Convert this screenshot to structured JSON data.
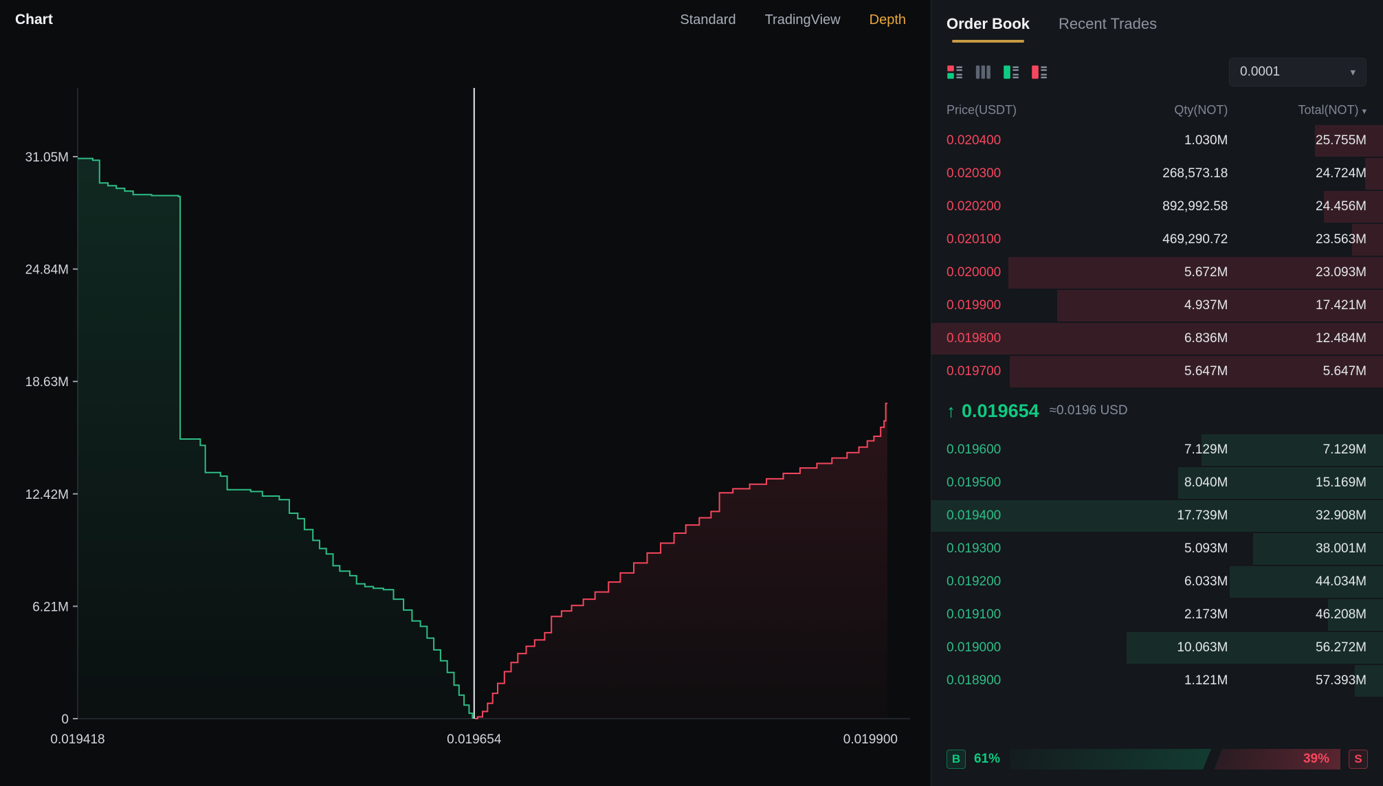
{
  "icons": {
    "chevron_down": "▾"
  },
  "chart_panel": {
    "title": "Chart",
    "tabs": [
      "Standard",
      "TradingView",
      "Depth"
    ],
    "active_tab": "Depth",
    "accent": "#e9a83d"
  },
  "chart_data": {
    "type": "area",
    "title": "Market depth",
    "x_min": 0.019418,
    "x_max": 0.0199,
    "mid_price": 0.019654,
    "y_ticks": [
      {
        "value": 0,
        "label": "0"
      },
      {
        "value": 6.21,
        "label": "6.21M"
      },
      {
        "value": 12.42,
        "label": "12.42M"
      },
      {
        "value": 18.63,
        "label": "18.63M"
      },
      {
        "value": 24.84,
        "label": "24.84M"
      },
      {
        "value": 31.05,
        "label": "31.05M"
      }
    ],
    "x_labels": [
      {
        "price": 0.019418,
        "label": "0.019418",
        "anchor": "middle"
      },
      {
        "price": 0.019654,
        "label": "0.019654",
        "anchor": "middle"
      },
      {
        "price": 0.0199,
        "label": "0.019900",
        "anchor": "end"
      }
    ],
    "series": [
      {
        "name": "bids",
        "color": "#2ebd85",
        "fill_top": "rgba(46,189,133,0.16)",
        "fill_bottom": "rgba(46,189,133,0.02)",
        "points": [
          [
            0.019418,
            30.95
          ],
          [
            0.019427,
            30.85
          ],
          [
            0.019431,
            29.6
          ],
          [
            0.019436,
            29.45
          ],
          [
            0.019441,
            29.3
          ],
          [
            0.019446,
            29.15
          ],
          [
            0.019451,
            28.95
          ],
          [
            0.019462,
            28.9
          ],
          [
            0.019478,
            28.85
          ],
          [
            0.019479,
            15.45
          ],
          [
            0.019491,
            15.1
          ],
          [
            0.019494,
            13.6
          ],
          [
            0.019503,
            13.4
          ],
          [
            0.019507,
            12.65
          ],
          [
            0.019521,
            12.55
          ],
          [
            0.019528,
            12.3
          ],
          [
            0.019538,
            12.1
          ],
          [
            0.019544,
            11.35
          ],
          [
            0.019549,
            11.05
          ],
          [
            0.019553,
            10.45
          ],
          [
            0.019558,
            9.85
          ],
          [
            0.019562,
            9.4
          ],
          [
            0.019566,
            9.1
          ],
          [
            0.01957,
            8.45
          ],
          [
            0.019574,
            8.15
          ],
          [
            0.01958,
            7.9
          ],
          [
            0.019584,
            7.45
          ],
          [
            0.019589,
            7.3
          ],
          [
            0.019594,
            7.2
          ],
          [
            0.0196,
            7.13
          ],
          [
            0.019606,
            6.6
          ],
          [
            0.019612,
            6.0
          ],
          [
            0.019617,
            5.4
          ],
          [
            0.019622,
            5.1
          ],
          [
            0.019626,
            4.45
          ],
          [
            0.01963,
            3.8
          ],
          [
            0.019634,
            3.2
          ],
          [
            0.019638,
            2.55
          ],
          [
            0.019642,
            1.85
          ],
          [
            0.019645,
            1.3
          ],
          [
            0.019648,
            0.75
          ],
          [
            0.019651,
            0.3
          ],
          [
            0.019653,
            0.05
          ],
          [
            0.0196535,
            0.0
          ]
        ]
      },
      {
        "name": "asks",
        "color": "#f6465d",
        "fill_top": "rgba(246,70,93,0.14)",
        "fill_bottom": "rgba(246,70,93,0.02)",
        "points": [
          [
            0.0196545,
            0.0
          ],
          [
            0.019656,
            0.1
          ],
          [
            0.019659,
            0.4
          ],
          [
            0.019662,
            0.85
          ],
          [
            0.019665,
            1.4
          ],
          [
            0.019668,
            1.95
          ],
          [
            0.019672,
            2.6
          ],
          [
            0.019676,
            3.1
          ],
          [
            0.01968,
            3.6
          ],
          [
            0.019685,
            4.0
          ],
          [
            0.01969,
            4.35
          ],
          [
            0.019696,
            4.75
          ],
          [
            0.0197,
            5.65
          ],
          [
            0.019706,
            5.95
          ],
          [
            0.019712,
            6.25
          ],
          [
            0.019719,
            6.6
          ],
          [
            0.019726,
            7.0
          ],
          [
            0.019734,
            7.55
          ],
          [
            0.019741,
            8.05
          ],
          [
            0.019749,
            8.6
          ],
          [
            0.019757,
            9.15
          ],
          [
            0.019765,
            9.7
          ],
          [
            0.019773,
            10.25
          ],
          [
            0.01978,
            10.7
          ],
          [
            0.019788,
            11.1
          ],
          [
            0.019795,
            11.45
          ],
          [
            0.0198,
            12.48
          ],
          [
            0.019808,
            12.7
          ],
          [
            0.019818,
            12.95
          ],
          [
            0.019828,
            13.25
          ],
          [
            0.019838,
            13.55
          ],
          [
            0.019848,
            13.85
          ],
          [
            0.019858,
            14.1
          ],
          [
            0.019867,
            14.4
          ],
          [
            0.019876,
            14.7
          ],
          [
            0.019883,
            15.0
          ],
          [
            0.019888,
            15.35
          ],
          [
            0.019892,
            15.6
          ],
          [
            0.019896,
            16.1
          ],
          [
            0.019898,
            16.45
          ],
          [
            0.019899,
            17.42
          ],
          [
            0.0199,
            17.42
          ]
        ]
      }
    ]
  },
  "order_book": {
    "tabs": [
      "Order Book",
      "Recent Trades"
    ],
    "active_tab": "Order Book",
    "tick_size": "0.0001",
    "columns": [
      "Price(USDT)",
      "Qty(NOT)",
      "Total(NOT)"
    ],
    "asks": [
      {
        "price": "0.020400",
        "qty": "1.030M",
        "total": "25.755M",
        "qty_m": 1.03
      },
      {
        "price": "0.020300",
        "qty": "268,573.18",
        "total": "24.724M",
        "qty_m": 0.269
      },
      {
        "price": "0.020200",
        "qty": "892,992.58",
        "total": "24.456M",
        "qty_m": 0.893
      },
      {
        "price": "0.020100",
        "qty": "469,290.72",
        "total": "23.563M",
        "qty_m": 0.469
      },
      {
        "price": "0.020000",
        "qty": "5.672M",
        "total": "23.093M",
        "qty_m": 5.672
      },
      {
        "price": "0.019900",
        "qty": "4.937M",
        "total": "17.421M",
        "qty_m": 4.937
      },
      {
        "price": "0.019800",
        "qty": "6.836M",
        "total": "12.484M",
        "qty_m": 6.836
      },
      {
        "price": "0.019700",
        "qty": "5.647M",
        "total": "5.647M",
        "qty_m": 5.647
      }
    ],
    "last_price": {
      "arrow": "↑",
      "value": "0.019654",
      "approx": "≈0.0196 USD",
      "direction": "up"
    },
    "bids": [
      {
        "price": "0.019600",
        "qty": "7.129M",
        "total": "7.129M",
        "qty_m": 7.129
      },
      {
        "price": "0.019500",
        "qty": "8.040M",
        "total": "15.169M",
        "qty_m": 8.04
      },
      {
        "price": "0.019400",
        "qty": "17.739M",
        "total": "32.908M",
        "qty_m": 17.739
      },
      {
        "price": "0.019300",
        "qty": "5.093M",
        "total": "38.001M",
        "qty_m": 5.093
      },
      {
        "price": "0.019200",
        "qty": "6.033M",
        "total": "44.034M",
        "qty_m": 6.033
      },
      {
        "price": "0.019100",
        "qty": "2.173M",
        "total": "46.208M",
        "qty_m": 2.173
      },
      {
        "price": "0.019000",
        "qty": "10.063M",
        "total": "56.272M",
        "qty_m": 10.063
      },
      {
        "price": "0.018900",
        "qty": "1.121M",
        "total": "57.393M",
        "qty_m": 1.121
      }
    ],
    "ratio": {
      "buy_label": "B",
      "buy_pct": "61%",
      "sell_pct": "39%",
      "sell_label": "S",
      "buy_width": 61,
      "sell_width": 39
    }
  }
}
